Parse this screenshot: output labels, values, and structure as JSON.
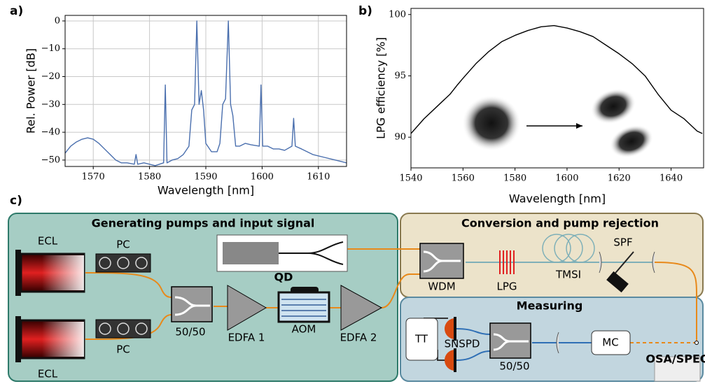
{
  "chart_data": [
    {
      "type": "line",
      "panel": "a)",
      "xlabel": "Wavelength [nm]",
      "ylabel": "Rel. Power [dB]",
      "color": "#4a6fae",
      "grid": true,
      "xlim": [
        1565,
        1615
      ],
      "ylim": [
        -52.3,
        2
      ],
      "xticks": [
        1570,
        1580,
        1590,
        1600,
        1610
      ],
      "yticks": [
        {
          "value": 0,
          "label": "0"
        },
        {
          "value": -10,
          "label": "−10"
        },
        {
          "value": -20,
          "label": "−20"
        },
        {
          "value": -30,
          "label": "−30"
        },
        {
          "value": -40,
          "label": "−40"
        },
        {
          "value": -50,
          "label": "−50"
        }
      ],
      "x": [
        1565,
        1566,
        1567,
        1568,
        1569,
        1570,
        1571,
        1572,
        1573,
        1574,
        1575,
        1576,
        1577.3,
        1577.6,
        1577.9,
        1579,
        1580,
        1581,
        1582.5,
        1582.8,
        1583.1,
        1584,
        1585,
        1586,
        1587,
        1587.5,
        1588,
        1588.4,
        1588.8,
        1589.2,
        1589.6,
        1590,
        1591,
        1592,
        1592.5,
        1593,
        1593.5,
        1594,
        1594.4,
        1594.8,
        1595.3,
        1596,
        1597,
        1598,
        1599.5,
        1599.8,
        1600.1,
        1601,
        1602,
        1603,
        1604,
        1605.3,
        1605.6,
        1605.9,
        1607,
        1609,
        1611,
        1613,
        1615
      ],
      "values": [
        -47.5,
        -45,
        -43.5,
        -42.5,
        -42,
        -42.5,
        -44,
        -46,
        -48,
        -50,
        -51,
        -51,
        -51.5,
        -48,
        -51.5,
        -51,
        -51.5,
        -52,
        -51,
        -23,
        -51,
        -50,
        -49.5,
        -48,
        -45,
        -32,
        -30,
        0,
        -30,
        -25,
        -32,
        -44,
        -47,
        -47,
        -44,
        -30,
        -28,
        0,
        -30,
        -34,
        -45,
        -45,
        -44,
        -44.5,
        -45,
        -23,
        -45,
        -45,
        -46,
        -46,
        -46.5,
        -45,
        -35,
        -45,
        -46,
        -48,
        -49,
        -50,
        -51
      ]
    },
    {
      "type": "line",
      "panel": "b)",
      "xlabel": "Wavelength [nm]",
      "ylabel": "LPG efficiency [%]",
      "color": "#000000",
      "grid": false,
      "xlim": [
        1540,
        1652.5
      ],
      "ylim": [
        87.5,
        100.5
      ],
      "xticks": [
        1540,
        1560,
        1580,
        1600,
        1620,
        1640
      ],
      "yticks": [
        90,
        95,
        100
      ],
      "x": [
        1540,
        1545,
        1550,
        1555,
        1558,
        1560,
        1565,
        1570,
        1575,
        1580,
        1585,
        1590,
        1595,
        1600,
        1605,
        1610,
        1615,
        1620,
        1625,
        1630,
        1635,
        1640,
        1645,
        1650,
        1652
      ],
      "values": [
        90.3,
        91.5,
        92.5,
        93.5,
        94.3,
        94.8,
        96,
        97,
        97.8,
        98.3,
        98.7,
        99,
        99.1,
        98.9,
        98.6,
        98.2,
        97.5,
        96.8,
        96,
        95,
        93.5,
        92.2,
        91.5,
        90.5,
        90.3
      ]
    }
  ],
  "diagram": {
    "panel": "c)",
    "sections": [
      "Generating pumps and input signal",
      "Conversion and pump rejection",
      "Measuring"
    ],
    "labels": [
      "ECL",
      "ECL",
      "PC",
      "PC",
      "50/50",
      "EDFA 1",
      "AOM",
      "EDFA 2",
      "QD",
      "WDM",
      "LPG",
      "TMSI",
      "SPF",
      "TT",
      "SNSPD",
      "50/50",
      "MC",
      "OSA/SPEC"
    ]
  }
}
